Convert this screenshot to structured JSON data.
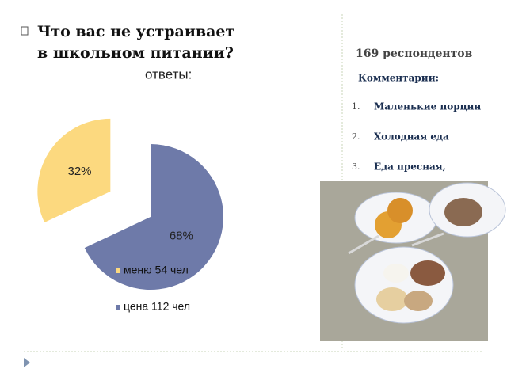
{
  "slide": {
    "title": "Что вас не устраивает в школьном питании?",
    "subtitle": "ответы:",
    "respondents": "169 респондентов",
    "comments_heading": "Комментарии:",
    "comments": [
      {
        "number": "1.",
        "text": "Маленькие порции"
      },
      {
        "number": "2.",
        "text": "Холодная еда"
      },
      {
        "number": "3.",
        "text": "Еда пресная,"
      }
    ]
  },
  "chart_data": {
    "type": "pie",
    "categories": [
      "меню 54 чел",
      "цена 112 чел"
    ],
    "values": [
      32,
      68
    ],
    "value_labels": [
      "32%",
      "68%"
    ],
    "colors": [
      "#fcd97f",
      "#6e7aa9"
    ]
  }
}
